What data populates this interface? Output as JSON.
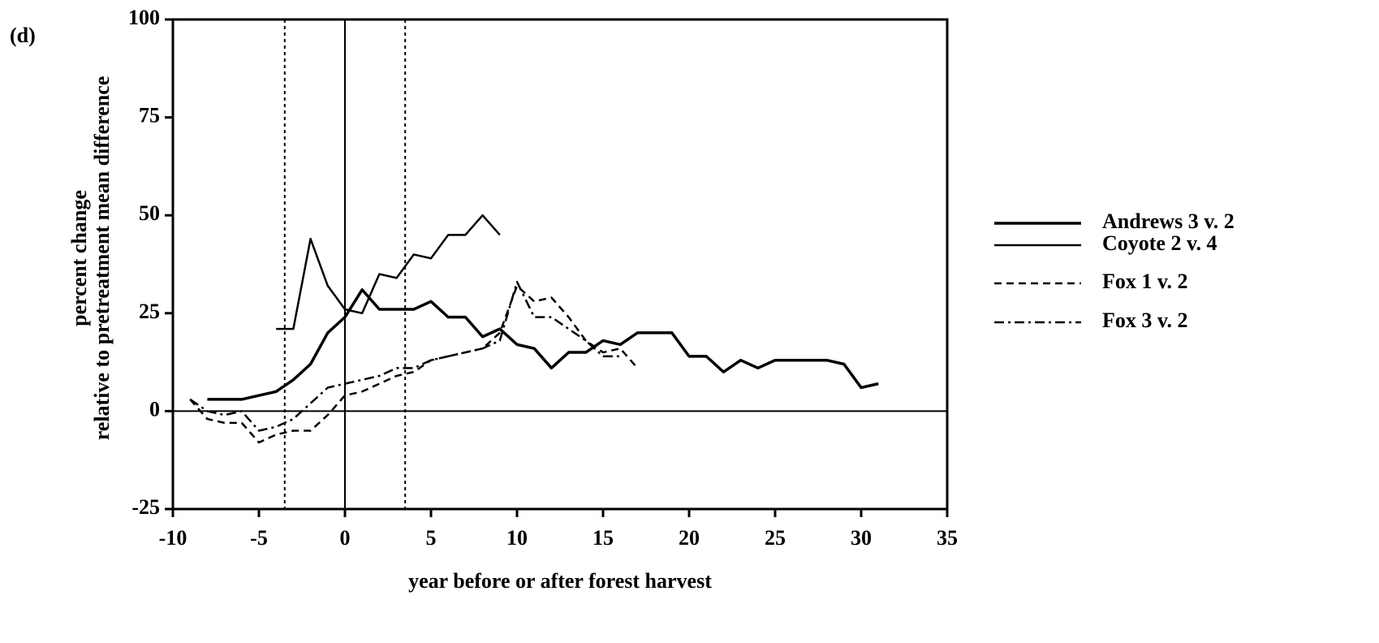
{
  "chart_data": {
    "type": "line",
    "panel_label": "(d)",
    "xlabel": "year before or after forest harvest",
    "ylabel": [
      "percent change",
      "relative to pretreatment mean difference"
    ],
    "xlim": [
      -10,
      35
    ],
    "ylim": [
      -25,
      100
    ],
    "xticks": [
      -10,
      -5,
      0,
      5,
      10,
      15,
      20,
      25,
      30,
      35
    ],
    "yticks": [
      -25,
      0,
      25,
      50,
      75,
      100
    ],
    "vlines": [
      {
        "x": -3.5,
        "style": "dotted"
      },
      {
        "x": 0,
        "style": "solid"
      },
      {
        "x": 3.5,
        "style": "dotted"
      }
    ],
    "hline": 0,
    "legend": "right",
    "series": [
      {
        "name": "Andrews 3 v. 2",
        "color": "#000000",
        "dash": "solid",
        "width": 3.5,
        "x": [
          -8,
          -6,
          -4,
          -3,
          -2,
          -1,
          0,
          1,
          2,
          3,
          4,
          5,
          6,
          7,
          8,
          9,
          10,
          11,
          12,
          13,
          14,
          15,
          16,
          17,
          18,
          19,
          20,
          21,
          22,
          23,
          24,
          25,
          26,
          27,
          28,
          29,
          30,
          31
        ],
        "values": [
          3,
          3,
          5,
          8,
          12,
          20,
          24,
          31,
          26,
          26,
          26,
          28,
          24,
          24,
          19,
          21,
          17,
          16,
          11,
          15,
          15,
          18,
          17,
          20,
          20,
          20,
          14,
          14,
          10,
          13,
          11,
          13,
          13,
          13,
          13,
          12,
          6,
          7
        ]
      },
      {
        "name": "Coyote 2 v. 4",
        "color": "#000000",
        "dash": "solid",
        "width": 2.5,
        "x": [
          -4,
          -3,
          -2,
          -1,
          0,
          1,
          2,
          3,
          4,
          5,
          6,
          7,
          8,
          9
        ],
        "values": [
          21,
          21,
          44,
          32,
          26,
          25,
          35,
          34,
          40,
          39,
          45,
          45,
          50,
          45
        ]
      },
      {
        "name": "Fox 1 v. 2",
        "color": "#000000",
        "dash": "dashed",
        "width": 2.5,
        "x": [
          -9,
          -8,
          -7,
          -6,
          -5,
          -4,
          -3,
          -2,
          -1,
          0,
          1,
          2,
          3,
          4,
          5,
          6,
          7,
          8,
          9,
          10,
          11,
          12,
          13,
          14,
          15,
          16,
          17
        ],
        "values": [
          3,
          -2,
          -3,
          -3,
          -8,
          -6,
          -5,
          -5,
          -1,
          4,
          5,
          7,
          9,
          10,
          13,
          14,
          15,
          16,
          20,
          32,
          28,
          29,
          24,
          18,
          15,
          16,
          11
        ]
      },
      {
        "name": "Fox 3 v. 2",
        "color": "#000000",
        "dash": "dashdot",
        "width": 2.5,
        "x": [
          -9,
          -8,
          -7,
          -6,
          -5,
          -4,
          -3,
          -2,
          -1,
          0,
          1,
          2,
          3,
          4,
          5,
          6,
          7,
          8,
          9,
          10,
          11,
          12,
          13,
          14,
          15,
          16
        ],
        "values": [
          3,
          0,
          -1,
          0,
          -5,
          -4,
          -2,
          2,
          6,
          7,
          8,
          9,
          11,
          11,
          13,
          14,
          15,
          16,
          18,
          33,
          24,
          24,
          21,
          18,
          14,
          14
        ]
      }
    ]
  }
}
